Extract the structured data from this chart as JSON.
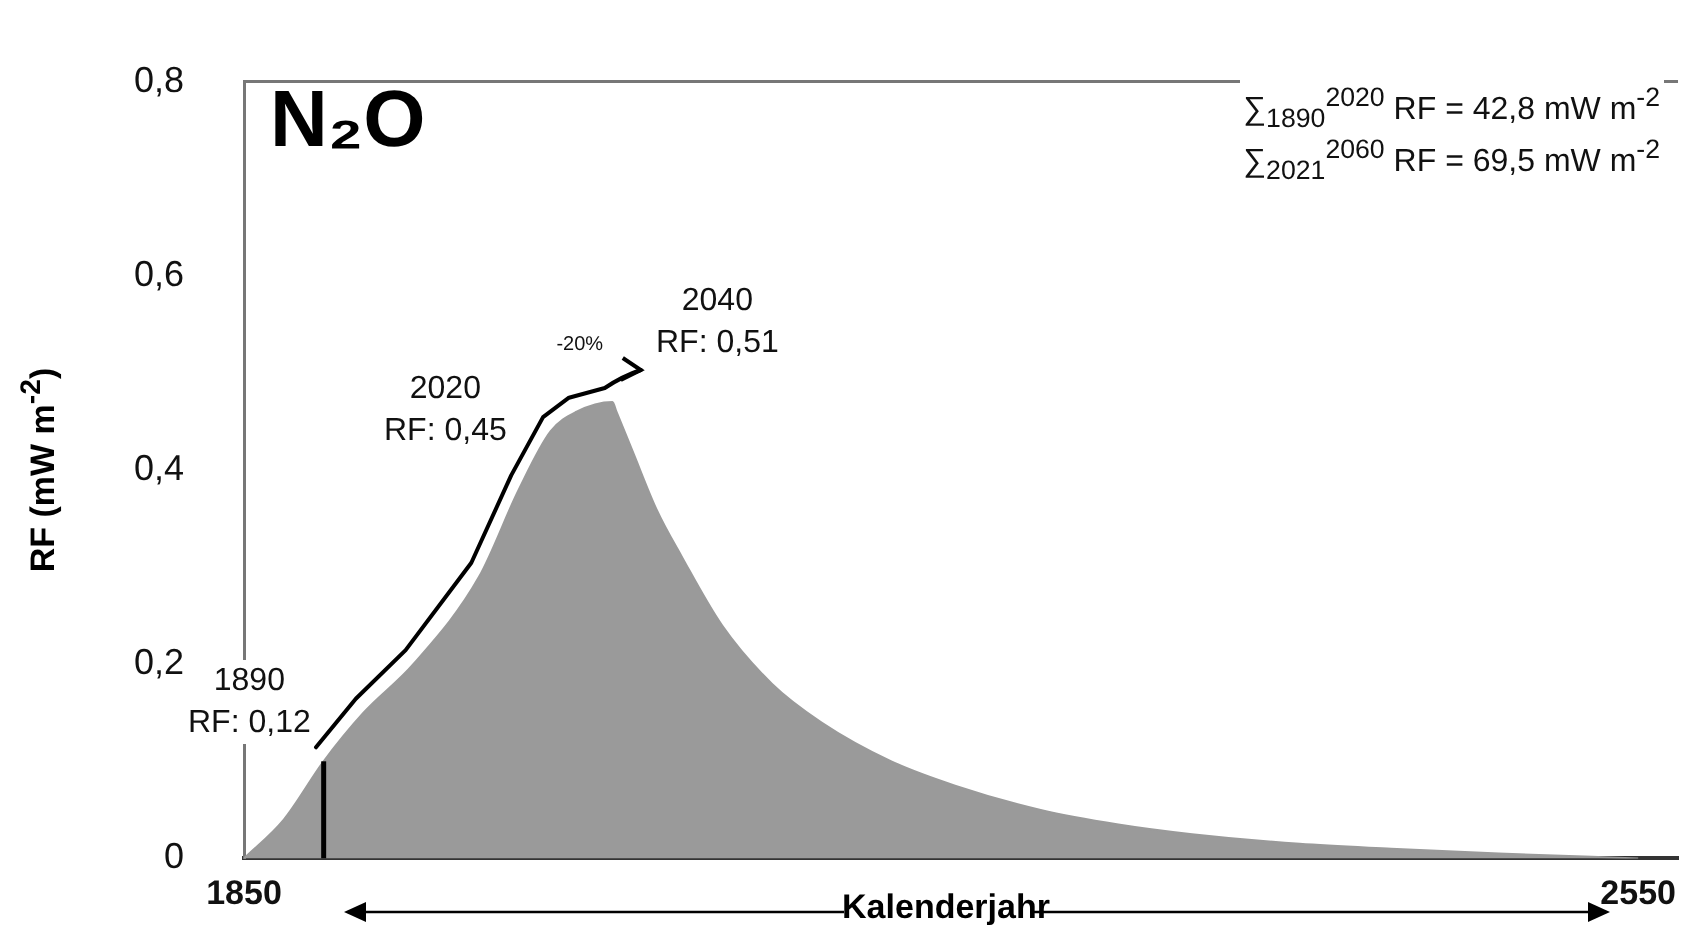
{
  "chart_data": {
    "type": "area",
    "title": "N₂O",
    "xlabel": "Kalenderjahr",
    "ylabel": "RF (mW m$^{-2}$)",
    "xlim": [
      1850,
      2570
    ],
    "xticks": [
      1850,
      2550
    ],
    "ylim": [
      0,
      0.8
    ],
    "yticks": [
      0,
      {
        "value": 0.2,
        "label": "0,2"
      },
      {
        "value": 0.4,
        "label": "0,4"
      },
      {
        "value": 0.6,
        "label": "0,6"
      },
      {
        "value": 0.8,
        "label": "0,8"
      }
    ],
    "grid": false,
    "legend": false,
    "series": [
      {
        "color": "#9a9a9a",
        "x": [
          1850,
          1870,
          1890,
          1910,
          1935,
          1968,
          1988,
          2004,
          2017,
          2035,
          2037,
          2045,
          2057,
          2070,
          2090,
          2115,
          2140,
          2175,
          2207,
          2250,
          2289,
          2326,
          2380,
          2426,
          2480,
          2550
        ],
        "values": [
          0,
          0.04,
          0.1,
          0.15,
          0.2,
          0.29,
          0.38,
          0.44,
          0.46,
          0.47,
          0.46,
          0.42,
          0.36,
          0.31,
          0.24,
          0.18,
          0.14,
          0.1,
          0.075,
          0.05,
          0.035,
          0.025,
          0.015,
          0.01,
          0.005,
          0
        ]
      },
      {
        "type": "line",
        "color": "#000000",
        "x": [
          1890,
          1890
        ],
        "values": [
          0,
          0.1
        ]
      }
    ],
    "annotations": [
      "∑$_{1890}$$^{2020}$ RF = 42,8 mW m$^{-2}$",
      "∑$_{2021}$$^{2060}$ RF = 69,5 mW m$^{-2}$",
      "-20%",
      "1890\nRF: 0,12",
      "2020\nRF: 0,45",
      "2040\nRF: 0,51"
    ]
  }
}
